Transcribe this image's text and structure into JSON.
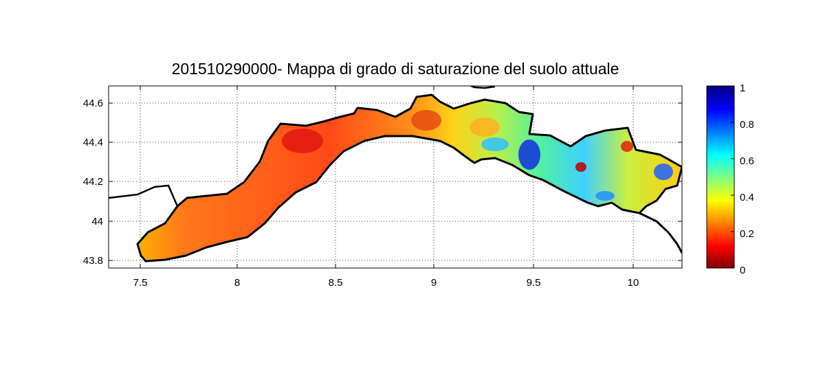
{
  "title": "201510290000- Mappa di grado di saturazione del suolo attuale",
  "map": {
    "x_ticks": [
      "7.5",
      "8",
      "8.5",
      "9",
      "9.5",
      "10"
    ],
    "y_ticks": [
      "44.6",
      "44.4",
      "44.2",
      "44",
      "43.8"
    ],
    "xlim": [
      7.35,
      10.25
    ],
    "ylim": [
      43.77,
      44.68
    ],
    "grid": "dotted"
  },
  "colorbar": {
    "ticks": [
      "1",
      "0.8",
      "0.6",
      "0.4",
      "0.2",
      "0"
    ],
    "range": [
      0,
      1
    ],
    "colormap": "jet",
    "colors": [
      "#800000",
      "#ff0000",
      "#ff8000",
      "#ffff00",
      "#80ff80",
      "#00ffff",
      "#0080ff",
      "#0000ff",
      "#000080"
    ]
  },
  "chart_data": {
    "type": "heatmap",
    "title": "201510290000- Mappa di grado di saturazione del suolo attuale",
    "xlim": [
      7.35,
      10.25
    ],
    "ylim": [
      43.77,
      44.68
    ],
    "x_ticks": [
      7.5,
      8,
      8.5,
      9,
      9.5,
      10
    ],
    "y_ticks": [
      43.8,
      44,
      44.2,
      44.4,
      44.6
    ],
    "colorbar_range": [
      0,
      1
    ],
    "colorbar_ticks": [
      0,
      0.2,
      0.4,
      0.6,
      0.8,
      1
    ],
    "grid": true
  }
}
